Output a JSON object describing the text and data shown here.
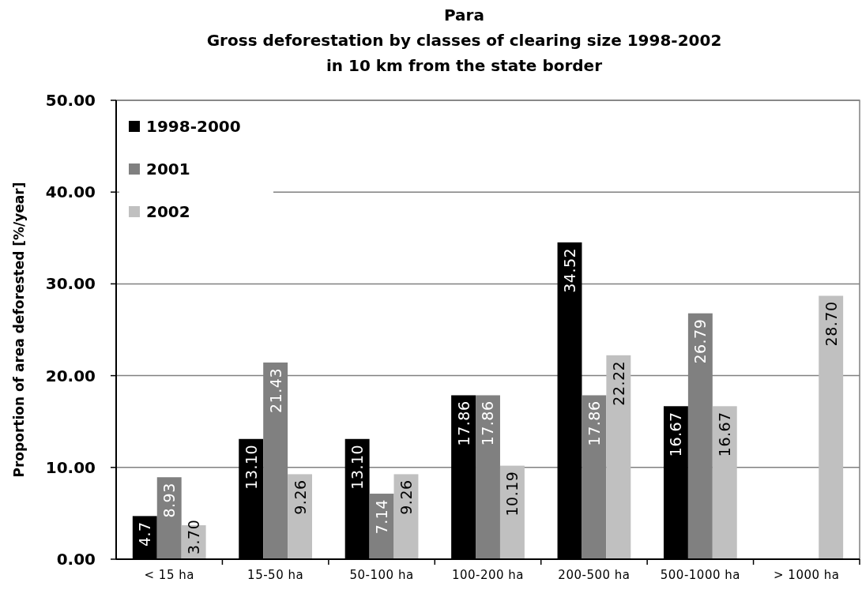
{
  "chart_data": {
    "type": "bar",
    "title": "Para\nGross deforestation by classes of clearing size 1998-2002\nin 10 km from the state border",
    "ylabel": "Proportion of area deforested [%/year]",
    "categories": [
      "< 15 ha",
      "15-50 ha",
      "50-100 ha",
      "100-200 ha",
      "200-500 ha",
      "500-1000 ha",
      "> 1000 ha"
    ],
    "series": [
      {
        "name": "1998-2000",
        "color": "#000000",
        "values": [
          4.7,
          13.1,
          13.1,
          17.86,
          34.52,
          16.67,
          null
        ],
        "value_labels": [
          "4.7",
          "13.10",
          "13.10",
          "17.86",
          "34.52",
          "16.67",
          null
        ]
      },
      {
        "name": "2001",
        "color": "#808080",
        "values": [
          8.93,
          21.43,
          7.14,
          17.86,
          17.86,
          26.79,
          null
        ],
        "value_labels": [
          "8.93",
          "21.43",
          "7.14",
          "17.86",
          "17.86",
          "26.79",
          null
        ]
      },
      {
        "name": "2002",
        "color": "#c0c0c0",
        "values": [
          3.7,
          9.26,
          9.26,
          10.19,
          22.22,
          16.67,
          28.7
        ],
        "value_labels": [
          "3.70",
          "9.26",
          "9.26",
          "10.19",
          "22.22",
          "16.67",
          "28.70"
        ]
      }
    ],
    "ylim": [
      0,
      50
    ],
    "yticks": [
      {
        "value": 0,
        "label": "0.00"
      },
      {
        "value": 10,
        "label": "10.00"
      },
      {
        "value": 20,
        "label": "20.00"
      },
      {
        "value": 30,
        "label": "30.00"
      },
      {
        "value": 40,
        "label": "40.00"
      },
      {
        "value": 50,
        "label": "50.00"
      }
    ],
    "grid": "y",
    "legend": "top left"
  }
}
